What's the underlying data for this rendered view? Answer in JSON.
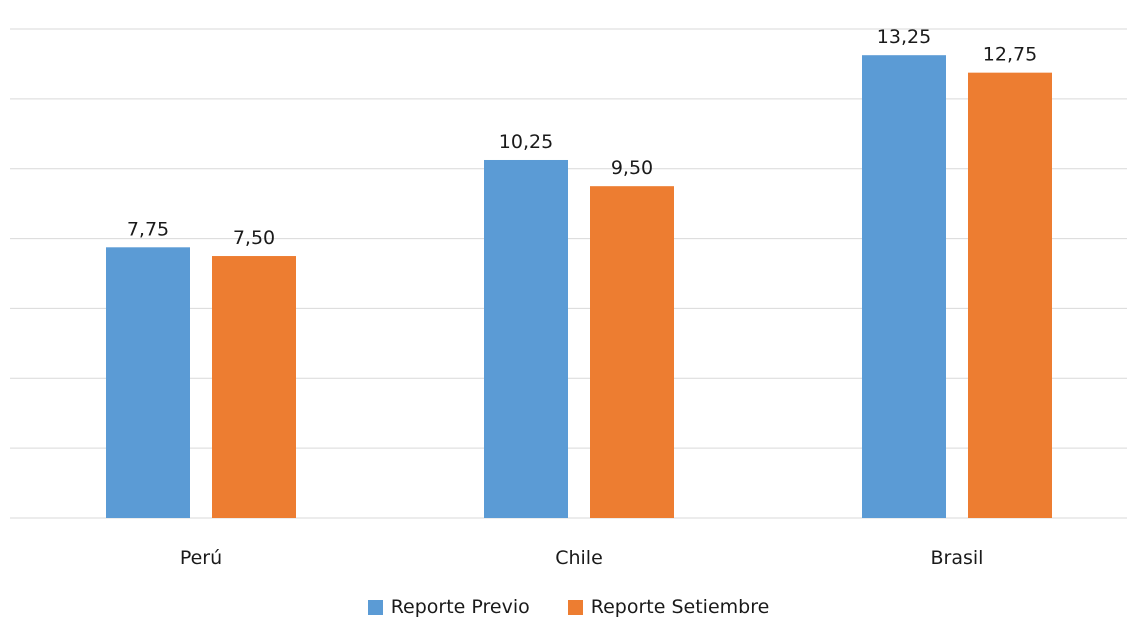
{
  "chart_data": {
    "type": "bar",
    "categories": [
      "Perú",
      "Chile",
      "Brasil"
    ],
    "series": [
      {
        "name": "Reporte Previo",
        "values": [
          7.75,
          10.25,
          13.25
        ],
        "labels": [
          "7,75",
          "10,25",
          "13,25"
        ],
        "color": "#5b9bd5"
      },
      {
        "name": "Reporte Setiembre",
        "values": [
          7.5,
          9.5,
          12.75
        ],
        "labels": [
          "7,50",
          "9,50",
          "12,75"
        ],
        "color": "#ed7d31"
      }
    ],
    "ylim": [
      0,
      14
    ],
    "grid": true,
    "legend_position": "bottom"
  }
}
